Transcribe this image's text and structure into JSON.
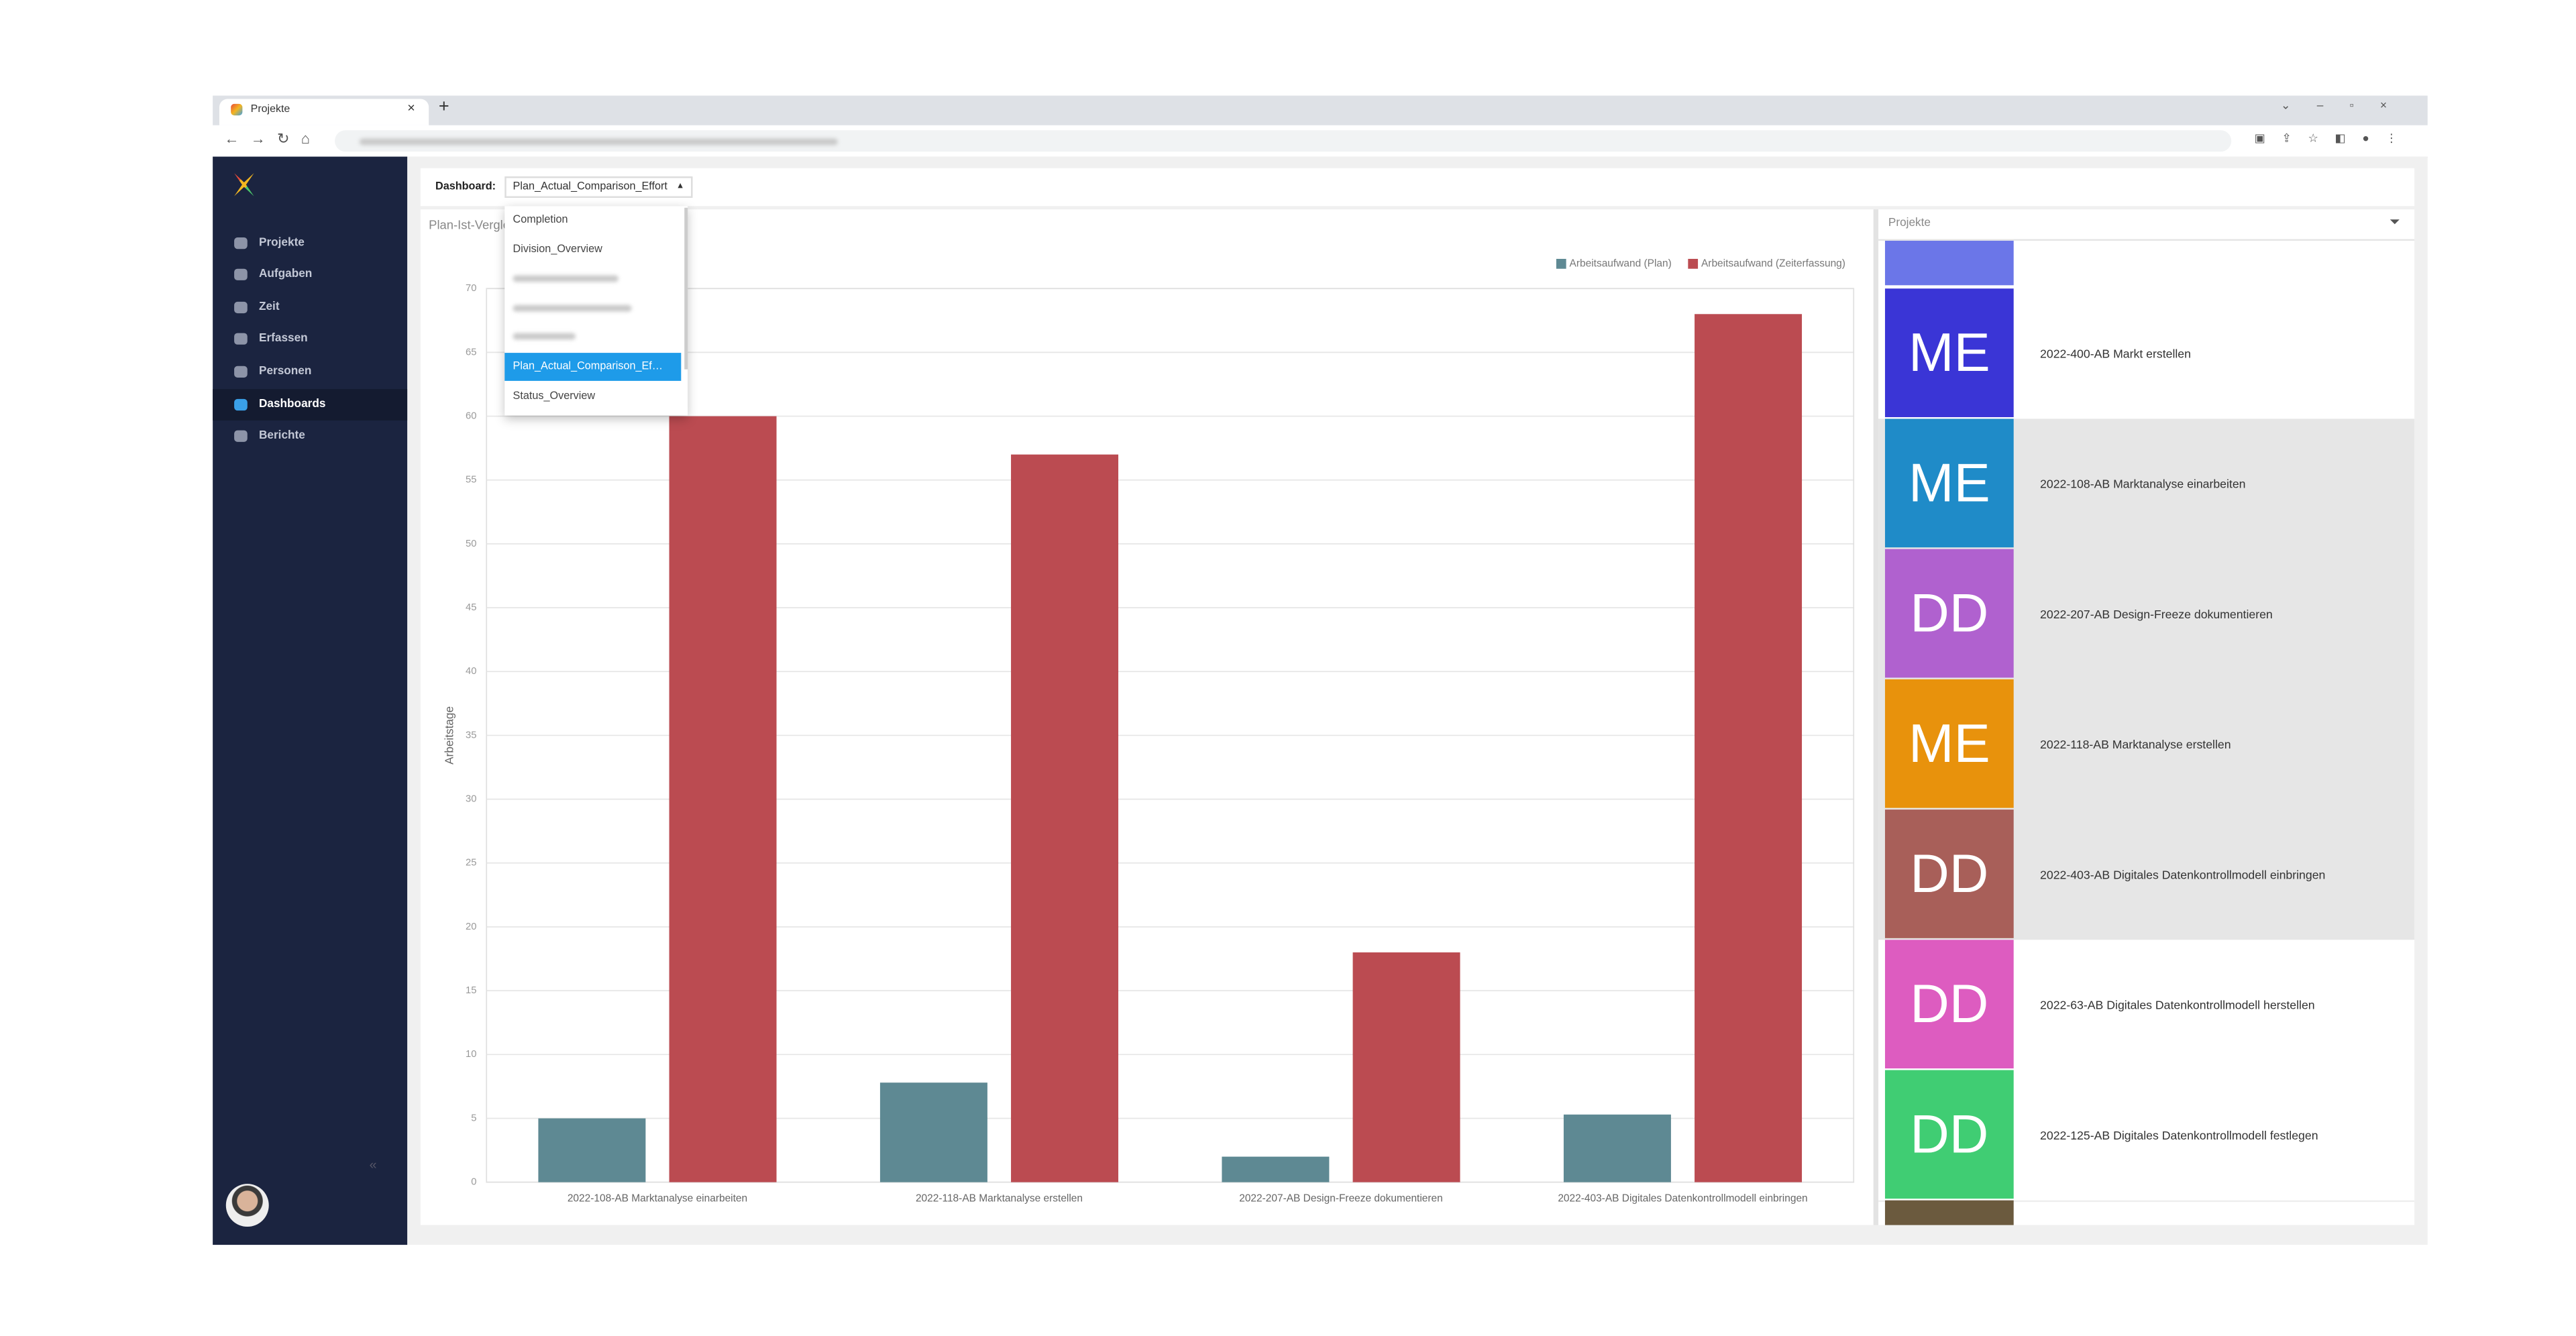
{
  "browser": {
    "tab_title": "Projekte"
  },
  "sidebar": {
    "nav": [
      "Projekte",
      "Aufgaben",
      "Zeit",
      "Erfassen",
      "Personen",
      "Dashboards",
      "Berichte"
    ],
    "active": "Dashboards"
  },
  "toolbar": {
    "label": "Dashboard:",
    "selected": "Plan_Actual_Comparison_Effort"
  },
  "dropdown": {
    "options": [
      "Completion",
      "Division_Overview",
      "Plan_Actual_Comparison_Ef…",
      "Status_Overview"
    ],
    "highlighted": "Plan_Actual_Comparison_Ef…"
  },
  "chart_data": {
    "type": "bar",
    "title": "Plan-Ist-Vergleich",
    "y_label": "Arbeitstage",
    "categories": [
      "2022-108-AB Marktanalyse einarbeiten",
      "2022-118-AB Marktanalyse erstellen",
      "2022-207-AB Design-Freeze dokumentieren",
      "2022-403-AB Digitales Datenkontrollmodell einbringen"
    ],
    "series": [
      {
        "name": "Arbeitsaufwand (Plan)",
        "color": "#5e8993",
        "values": [
          5,
          7.8,
          2,
          5.3
        ]
      },
      {
        "name": "Arbeitsaufwand (Zeiterfassung)",
        "color": "#bb4b51",
        "values": [
          60,
          57,
          18,
          68
        ]
      }
    ],
    "ylim": [
      0,
      70
    ],
    "yticks": [
      0,
      5,
      10,
      15,
      20,
      25,
      30,
      35,
      40,
      45,
      50,
      55,
      60,
      65,
      70
    ],
    "grid": true,
    "legend": "top-right"
  },
  "projects_panel": {
    "title": "Projekte",
    "items": [
      {
        "initials": "ME",
        "name": "2022-400-AB Markt erstellen",
        "color": "#3a35d6",
        "highlighted": false
      },
      {
        "initials": "ME",
        "name": "2022-108-AB Marktanalyse einarbeiten",
        "color": "#1f8bc8",
        "highlighted": true
      },
      {
        "initials": "DD",
        "name": "2022-207-AB Design-Freeze dokumentieren",
        "color": "#b061cf",
        "highlighted": true
      },
      {
        "initials": "ME",
        "name": "2022-118-AB Marktanalyse erstellen",
        "color": "#e8920c",
        "highlighted": true
      },
      {
        "initials": "DD",
        "name": "2022-403-AB Digitales Datenkontrollmodell einbringen",
        "color": "#a85f59",
        "highlighted": true
      },
      {
        "initials": "DD",
        "name": "2022-63-AB Digitales Datenkontrollmodell herstellen",
        "color": "#dd5cc0",
        "highlighted": false
      },
      {
        "initials": "DD",
        "name": "2022-125-AB Digitales Datenkontrollmodell festlegen",
        "color": "#40cd73",
        "highlighted": false
      }
    ]
  }
}
